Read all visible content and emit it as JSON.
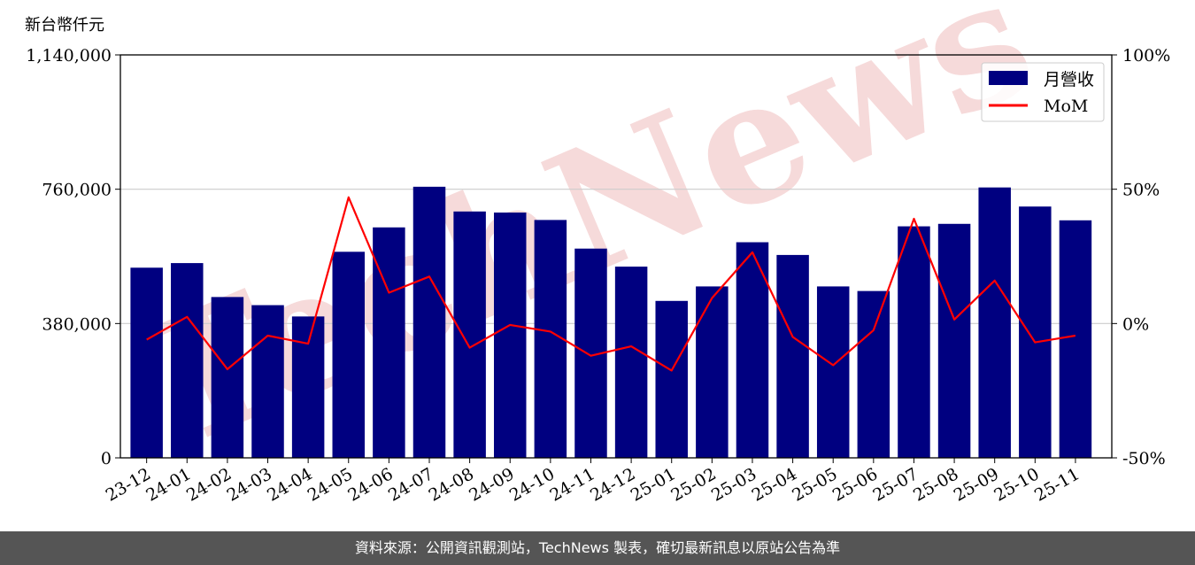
{
  "watermark": "TechNews",
  "footer": {
    "source_note": "資料來源：公開資訊觀測站，TechNews 製表，確切最新訊息以原站公告為準"
  },
  "colors": {
    "bar": "#000080",
    "line": "#ff0000",
    "grid": "#cccccc",
    "watermark": "#f6dada",
    "footer_bg": "#555555"
  },
  "chart_data": {
    "type": "bar",
    "title": "",
    "ylabel": "新台幣仟元",
    "xlabel": "",
    "categories": [
      "23-12",
      "24-01",
      "24-02",
      "24-03",
      "24-04",
      "24-05",
      "24-06",
      "24-07",
      "24-08",
      "24-09",
      "24-10",
      "24-11",
      "24-12",
      "25-01",
      "25-02",
      "25-03",
      "25-04",
      "25-05",
      "25-06",
      "25-07",
      "25-08",
      "25-09",
      "25-10",
      "25-11"
    ],
    "series": [
      {
        "name": "月營收",
        "type": "bar",
        "axis": "left",
        "values": [
          538000,
          551000,
          455000,
          432000,
          400000,
          583000,
          652000,
          767000,
          697000,
          694000,
          673000,
          592000,
          541000,
          444000,
          485000,
          610000,
          574000,
          485000,
          472000,
          655000,
          662000,
          765000,
          711000,
          672000
        ]
      },
      {
        "name": "MoM",
        "type": "line",
        "axis": "right",
        "unit": "%",
        "values": [
          -6.0,
          2.5,
          -17.0,
          -4.5,
          -7.5,
          47.0,
          11.5,
          17.5,
          -9.0,
          -0.5,
          -3.0,
          -12.0,
          -8.5,
          -17.5,
          9.5,
          26.5,
          -5.0,
          -15.5,
          -2.5,
          39.0,
          1.5,
          16.0,
          -7.0,
          -4.5
        ]
      }
    ],
    "y_left": {
      "ylim": [
        0,
        1140000
      ],
      "ticks": [
        0,
        380000,
        760000,
        1140000
      ],
      "tick_labels": [
        "0",
        "380,000",
        "760,000",
        "1,140,000"
      ]
    },
    "y_right": {
      "ylim": [
        -50,
        100
      ],
      "ticks": [
        -50,
        0,
        50,
        100
      ],
      "tick_labels": [
        "-50%",
        "0%",
        "50%",
        "100%"
      ]
    },
    "grid": "horizontal",
    "legend": {
      "position": "top-right",
      "entries": [
        "月營收",
        "MoM"
      ]
    }
  }
}
